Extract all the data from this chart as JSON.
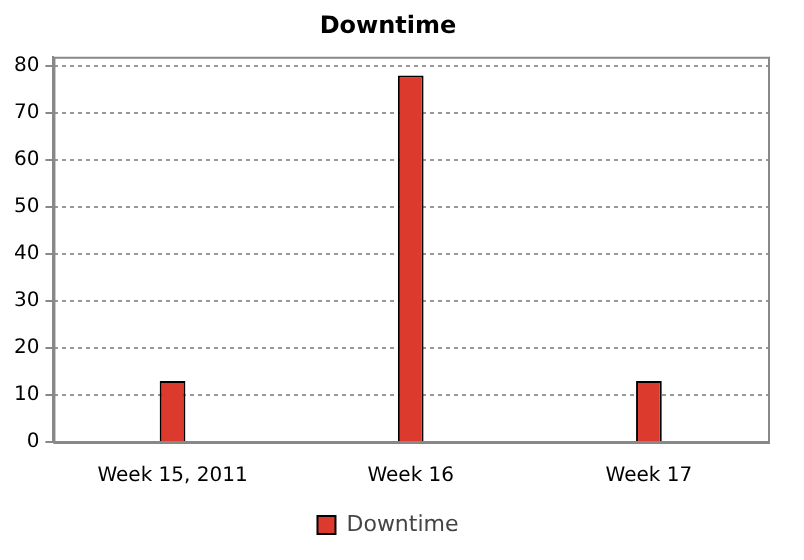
{
  "chart_data": {
    "type": "bar",
    "title": "Downtime",
    "categories": [
      "Week 15, 2011",
      "Week 16",
      "Week 17"
    ],
    "series": [
      {
        "name": "Downtime",
        "color": "#dd3a2e",
        "values": [
          13,
          78,
          13
        ]
      }
    ],
    "ylim": [
      0,
      82
    ],
    "yticks": [
      0,
      10,
      20,
      30,
      40,
      50,
      60,
      70,
      80
    ],
    "grid": "y",
    "legend": "bottom"
  }
}
